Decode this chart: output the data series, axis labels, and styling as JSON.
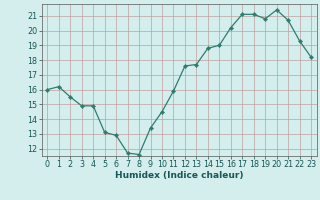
{
  "x": [
    0,
    1,
    2,
    3,
    4,
    5,
    6,
    7,
    8,
    9,
    10,
    11,
    12,
    13,
    14,
    15,
    16,
    17,
    18,
    19,
    20,
    21,
    22,
    23
  ],
  "y": [
    16.0,
    16.2,
    15.5,
    14.9,
    14.9,
    13.1,
    12.9,
    11.7,
    11.6,
    13.4,
    14.5,
    15.9,
    17.6,
    17.7,
    18.8,
    19.0,
    20.2,
    21.1,
    21.1,
    20.8,
    21.4,
    20.7,
    19.3,
    18.2
  ],
  "line_color": "#2e7d6e",
  "marker": "D",
  "marker_size": 2.2,
  "bg_color": "#d4eeee",
  "grid_color": "#c0a0a0",
  "xlabel": "Humidex (Indice chaleur)",
  "ylim": [
    11.5,
    21.8
  ],
  "xlim": [
    -0.5,
    23.5
  ],
  "yticks": [
    12,
    13,
    14,
    15,
    16,
    17,
    18,
    19,
    20,
    21
  ],
  "xticks": [
    0,
    1,
    2,
    3,
    4,
    5,
    6,
    7,
    8,
    9,
    10,
    11,
    12,
    13,
    14,
    15,
    16,
    17,
    18,
    19,
    20,
    21,
    22,
    23
  ],
  "label_fontsize": 6.5,
  "tick_fontsize": 5.8
}
